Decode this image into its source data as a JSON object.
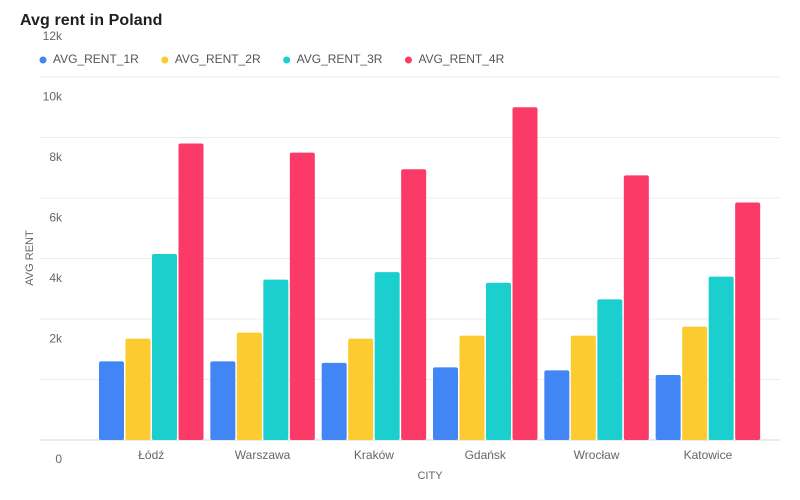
{
  "chart_data": {
    "type": "bar",
    "title": "Avg rent in Poland",
    "xlabel": "CITY",
    "ylabel": "AVG RENT",
    "ylim": [
      0,
      12000
    ],
    "yticks": [
      0,
      2000,
      4000,
      6000,
      8000,
      10000,
      12000
    ],
    "ytick_labels": [
      "0",
      "2k",
      "4k",
      "6k",
      "8k",
      "10k",
      "12k"
    ],
    "categories": [
      "Łódź",
      "Warszawa",
      "Kraków",
      "Gdańsk",
      "Wrocław",
      "Katowice"
    ],
    "series": [
      {
        "name": "AVG_RENT_1R",
        "color": "#4285f4",
        "values": [
          2600,
          2600,
          2550,
          2400,
          2300,
          2150
        ]
      },
      {
        "name": "AVG_RENT_2R",
        "color": "#fbcb2f",
        "values": [
          3350,
          3550,
          3350,
          3450,
          3450,
          3750
        ]
      },
      {
        "name": "AVG_RENT_3R",
        "color": "#1bcfce",
        "values": [
          6150,
          5300,
          5550,
          5200,
          4650,
          5400
        ]
      },
      {
        "name": "AVG_RENT_4R",
        "color": "#fc3a68",
        "values": [
          9800,
          9500,
          8950,
          11000,
          8750,
          7850
        ]
      }
    ],
    "grid": true,
    "legend_position": "top-left"
  }
}
